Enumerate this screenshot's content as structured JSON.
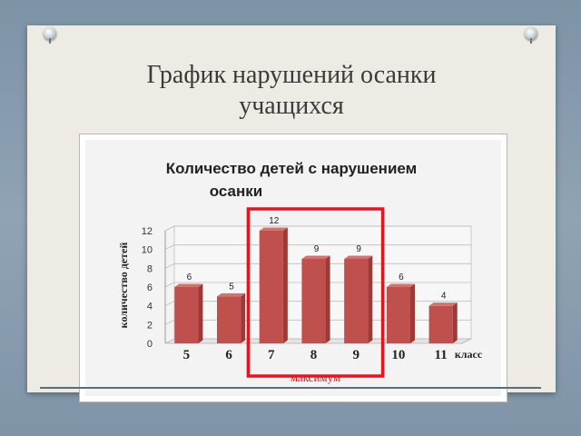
{
  "slide": {
    "title_line1": "График нарушений осанки",
    "title_line2": "учащихся"
  },
  "chart_data": {
    "type": "bar",
    "title": "Количество детей с нарушением осанки",
    "title_line1": "Количество детей с нарушением",
    "title_line2": "осанки",
    "ylabel": "количество детей",
    "xlabel": "класс",
    "categories": [
      "5",
      "6",
      "7",
      "8",
      "9",
      "10",
      "11"
    ],
    "values": [
      6,
      5,
      12,
      9,
      9,
      6,
      4
    ],
    "yticks": [
      "0",
      "2",
      "4",
      "6",
      "8",
      "10",
      "12"
    ],
    "ylim": [
      0,
      12
    ],
    "grid": true,
    "highlight": {
      "categories": [
        "7",
        "8",
        "9"
      ],
      "label": "максимум",
      "color": "#e8141c"
    },
    "colors": {
      "bar": "#c0504d",
      "bar_top": "#d9706d",
      "bar_side": "#9b3a37"
    }
  }
}
